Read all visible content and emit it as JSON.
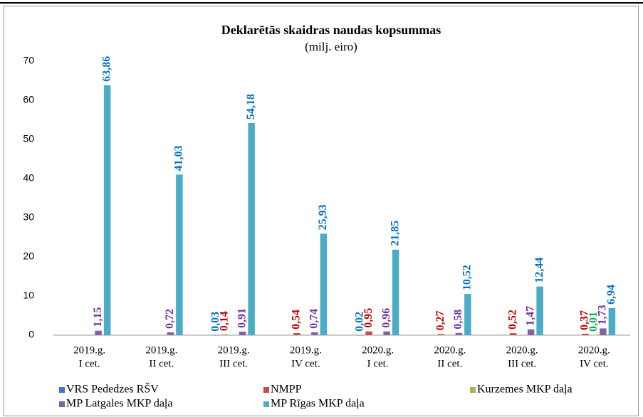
{
  "chart_data": {
    "type": "bar",
    "title": "Deklarētās skaidras naudas kopsummas",
    "subtitle": "(milj. eiro)",
    "categories": [
      [
        "2019.g.",
        "I cet."
      ],
      [
        "2019.g.",
        "II cet."
      ],
      [
        "2019.g.",
        "III cet."
      ],
      [
        "2019.g.",
        "IV cet."
      ],
      [
        "2020.g.",
        "I cet."
      ],
      [
        "2020.g.",
        "II cet."
      ],
      [
        "2020.g.",
        "III cet."
      ],
      [
        "2020.g.",
        "IV cet."
      ]
    ],
    "series": [
      {
        "name": "VRS Pededzes RŠV",
        "color": "#4472c4",
        "label_color": "#0070c0",
        "values": [
          null,
          null,
          0.03,
          null,
          0.02,
          null,
          null,
          null
        ],
        "value_labels": [
          null,
          null,
          "0,03",
          null,
          "0,02",
          null,
          null,
          null
        ]
      },
      {
        "name": "NMPP",
        "color": "#c0504d",
        "label_color": "#c00000",
        "values": [
          null,
          null,
          0.14,
          0.54,
          0.95,
          0.27,
          0.52,
          0.37
        ],
        "value_labels": [
          null,
          null,
          "0,14",
          "0,54",
          "0,95",
          "0,27",
          "0,52",
          "0,37"
        ]
      },
      {
        "name": "Kurzemes MKP daļa",
        "color": "#9bbb59",
        "label_color": "#00b050",
        "values": [
          null,
          null,
          null,
          null,
          null,
          null,
          null,
          0.01
        ],
        "value_labels": [
          null,
          null,
          null,
          null,
          null,
          null,
          null,
          "0,01"
        ]
      },
      {
        "name": "MP Latgales MKP daļa",
        "color": "#8064a2",
        "label_color": "#7030a0",
        "values": [
          1.15,
          0.72,
          0.91,
          0.74,
          0.96,
          0.58,
          1.47,
          1.73
        ],
        "value_labels": [
          "1,15",
          "0,72",
          "0,91",
          "0,74",
          "0,96",
          "0,58",
          "1,47",
          "1,73"
        ]
      },
      {
        "name": "MP Rīgas MKP daļa",
        "color": "#4bacc6",
        "label_color": "#0070c0",
        "values": [
          63.86,
          41.03,
          54.18,
          25.93,
          21.85,
          10.52,
          12.44,
          6.94
        ],
        "value_labels": [
          "63,86",
          "41,03",
          "54,18",
          "25,93",
          "21,85",
          "10,52",
          "12,44",
          "6,94"
        ]
      }
    ],
    "ylim": [
      0,
      70
    ],
    "yticks": [
      0,
      10,
      20,
      30,
      40,
      50,
      60,
      70
    ],
    "grid": false,
    "legend": "bottom"
  }
}
